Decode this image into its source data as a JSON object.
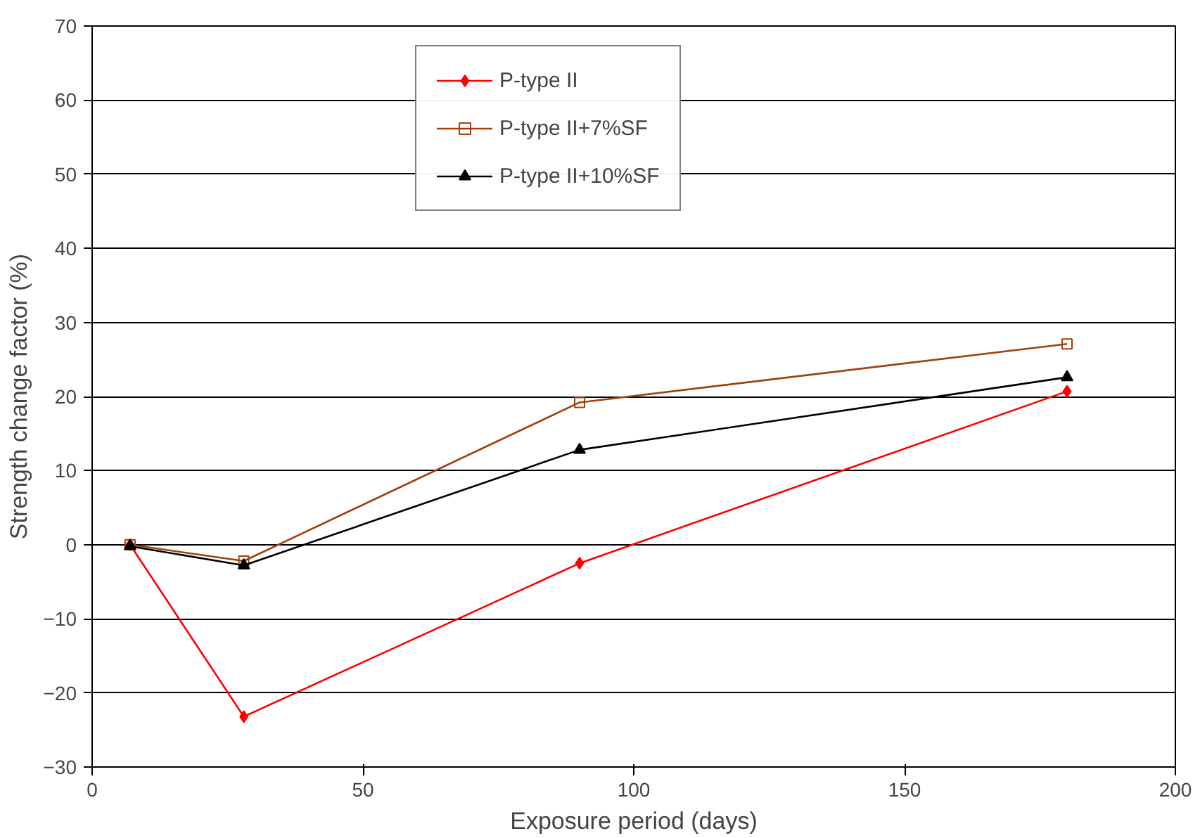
{
  "chart_data": {
    "type": "line",
    "xlabel": "Exposure period (days)",
    "ylabel": "Strength change factor (%)",
    "x": [
      7,
      28,
      90,
      180
    ],
    "series": [
      {
        "name": "P-type II",
        "color": "#ff0000",
        "marker": "diamond",
        "values": [
          0,
          -23.2,
          -2.5,
          20.7
        ]
      },
      {
        "name": "P-type II+7%SF",
        "color": "#a0410d",
        "marker": "square",
        "values": [
          0,
          -2.2,
          19.2,
          27.1
        ]
      },
      {
        "name": "P-type II+10%SF",
        "color": "#000000",
        "marker": "triangle",
        "values": [
          -0.2,
          -2.8,
          12.8,
          22.6
        ]
      }
    ],
    "xlim": [
      0,
      200
    ],
    "xticks": [
      0,
      50,
      100,
      150,
      200
    ],
    "ylim": [
      -30,
      70
    ],
    "yticks": [
      -30,
      -20,
      -10,
      0,
      10,
      20,
      30,
      40,
      50,
      60,
      70
    ],
    "grid": "y",
    "legend": "top"
  }
}
